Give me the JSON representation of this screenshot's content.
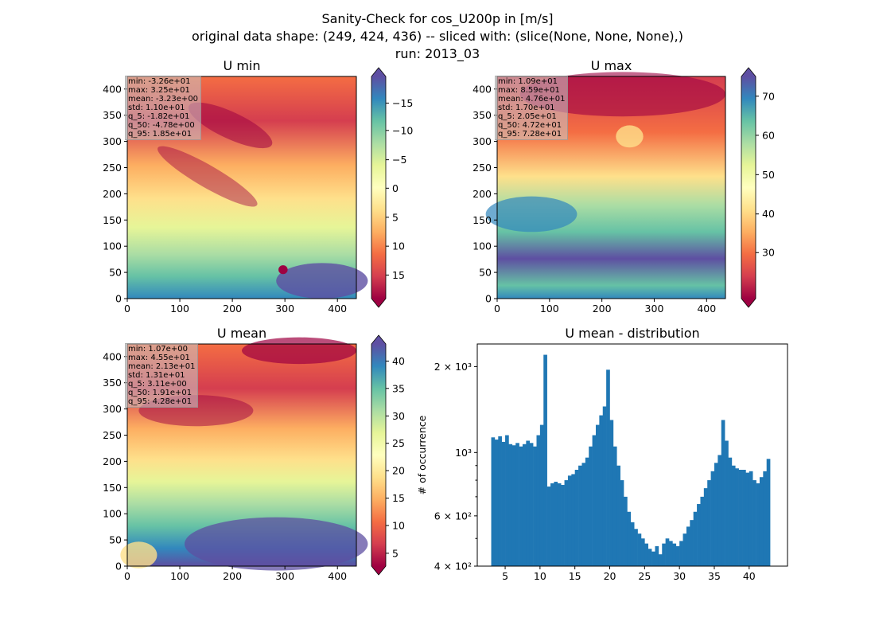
{
  "figure": {
    "title_lines": [
      "Sanity-Check for cos_U200p in [m/s]",
      "original data shape: (249, 424, 436) -- sliced with: (slice(None, None, None),)",
      "run: 2013_03"
    ]
  },
  "colormap": "Spectral",
  "panels": [
    {
      "title": "U min",
      "stats": [
        "min: -3.26e+01",
        "max: 3.25e+01",
        "mean: -3.23e+00",
        "std: 1.10e+01",
        "q_5: -1.82e+01",
        "q_50: -4.78e+00",
        "q_95: 1.85e+01"
      ],
      "x_ticks": [
        "0",
        "100",
        "200",
        "300",
        "400"
      ],
      "y_ticks": [
        "0",
        "50",
        "100",
        "150",
        "200",
        "250",
        "300",
        "350",
        "400"
      ],
      "colorbar_ticks": [
        "−15",
        "−10",
        "−5",
        "0",
        "5",
        "10",
        "15"
      ]
    },
    {
      "title": "U max",
      "stats": [
        "min: 1.09e+01",
        "max: 8.59e+01",
        "mean: 4.76e+01",
        "std: 1.70e+01",
        "q_5: 2.05e+01",
        "q_50: 4.72e+01",
        "q_95: 7.28e+01"
      ],
      "x_ticks": [
        "0",
        "100",
        "200",
        "300",
        "400"
      ],
      "y_ticks": [
        "0",
        "50",
        "100",
        "150",
        "200",
        "250",
        "300",
        "350",
        "400"
      ],
      "colorbar_ticks": [
        "30",
        "40",
        "50",
        "60",
        "70"
      ]
    },
    {
      "title": "U mean",
      "stats": [
        "min: 1.07e+00",
        "max: 4.55e+01",
        "mean: 2.13e+01",
        "std: 1.31e+01",
        "q_5: 3.11e+00",
        "q_50: 1.91e+01",
        "q_95: 4.28e+01"
      ],
      "x_ticks": [
        "0",
        "100",
        "200",
        "300",
        "400"
      ],
      "y_ticks": [
        "0",
        "50",
        "100",
        "150",
        "200",
        "250",
        "300",
        "350",
        "400"
      ],
      "colorbar_ticks": [
        "5",
        "10",
        "15",
        "20",
        "25",
        "30",
        "35",
        "40"
      ]
    }
  ],
  "chart_data": [
    {
      "type": "heatmap",
      "title": "U min",
      "xlim": [
        0,
        436
      ],
      "ylim": [
        0,
        424
      ],
      "colorbar_range": [
        -18.5,
        18.5
      ],
      "colormap": "Spectral",
      "note_values": "field rendered schematically"
    },
    {
      "type": "heatmap",
      "title": "U max",
      "xlim": [
        0,
        436
      ],
      "ylim": [
        0,
        424
      ],
      "colorbar_range": [
        20.5,
        75
      ],
      "colormap": "Spectral"
    },
    {
      "type": "heatmap",
      "title": "U mean",
      "xlim": [
        0,
        436
      ],
      "ylim": [
        0,
        424
      ],
      "colorbar_range": [
        2.5,
        43.5
      ],
      "colormap": "Spectral"
    },
    {
      "type": "bar",
      "title": "U mean - distribution",
      "ylabel": "# of occurrence",
      "xlabel": "",
      "y_scale": "log",
      "xlim": [
        1.0,
        45.5
      ],
      "ylim": [
        400,
        2400
      ],
      "x_ticks": [
        "5",
        "10",
        "15",
        "20",
        "25",
        "30",
        "35",
        "40"
      ],
      "y_tick_labels": [
        "4 × 10²",
        "6 × 10²",
        "10³",
        "2 × 10³"
      ],
      "y_tick_values": [
        400,
        600,
        1000,
        2000
      ],
      "bar_color": "#1f77b4",
      "bins": [
        [
          3.0,
          1130
        ],
        [
          3.5,
          1110
        ],
        [
          4.0,
          1140
        ],
        [
          4.5,
          1090
        ],
        [
          5.0,
          1150
        ],
        [
          5.5,
          1070
        ],
        [
          6.0,
          1060
        ],
        [
          6.5,
          1080
        ],
        [
          7.0,
          1050
        ],
        [
          7.5,
          1070
        ],
        [
          8.0,
          1100
        ],
        [
          8.5,
          1080
        ],
        [
          9.0,
          1050
        ],
        [
          9.5,
          1150
        ],
        [
          10.0,
          1250
        ],
        [
          10.5,
          2200
        ],
        [
          11.0,
          760
        ],
        [
          11.5,
          780
        ],
        [
          12.0,
          790
        ],
        [
          12.5,
          780
        ],
        [
          13.0,
          770
        ],
        [
          13.5,
          800
        ],
        [
          14.0,
          830
        ],
        [
          14.5,
          840
        ],
        [
          15.0,
          870
        ],
        [
          15.5,
          900
        ],
        [
          16.0,
          920
        ],
        [
          16.5,
          960
        ],
        [
          17.0,
          1050
        ],
        [
          17.5,
          1150
        ],
        [
          18.0,
          1250
        ],
        [
          18.5,
          1350
        ],
        [
          19.0,
          1450
        ],
        [
          19.5,
          1950
        ],
        [
          20.0,
          1300
        ],
        [
          20.5,
          1050
        ],
        [
          21.0,
          900
        ],
        [
          21.5,
          800
        ],
        [
          22.0,
          700
        ],
        [
          22.5,
          620
        ],
        [
          23.0,
          570
        ],
        [
          23.5,
          540
        ],
        [
          24.0,
          520
        ],
        [
          24.5,
          500
        ],
        [
          25.0,
          480
        ],
        [
          25.5,
          460
        ],
        [
          26.0,
          450
        ],
        [
          26.5,
          470
        ],
        [
          27.0,
          440
        ],
        [
          27.5,
          480
        ],
        [
          28.0,
          500
        ],
        [
          28.5,
          490
        ],
        [
          29.0,
          480
        ],
        [
          29.5,
          470
        ],
        [
          30.0,
          490
        ],
        [
          30.5,
          520
        ],
        [
          31.0,
          550
        ],
        [
          31.5,
          580
        ],
        [
          32.0,
          620
        ],
        [
          32.5,
          660
        ],
        [
          33.0,
          700
        ],
        [
          33.5,
          750
        ],
        [
          34.0,
          800
        ],
        [
          34.5,
          860
        ],
        [
          35.0,
          920
        ],
        [
          35.5,
          980
        ],
        [
          36.0,
          1300
        ],
        [
          36.5,
          1100
        ],
        [
          37.0,
          960
        ],
        [
          37.5,
          900
        ],
        [
          38.0,
          880
        ],
        [
          38.5,
          870
        ],
        [
          39.0,
          870
        ],
        [
          39.5,
          850
        ],
        [
          40.0,
          860
        ],
        [
          40.5,
          800
        ],
        [
          41.0,
          780
        ],
        [
          41.5,
          820
        ],
        [
          42.0,
          860
        ],
        [
          42.5,
          950
        ]
      ]
    }
  ]
}
